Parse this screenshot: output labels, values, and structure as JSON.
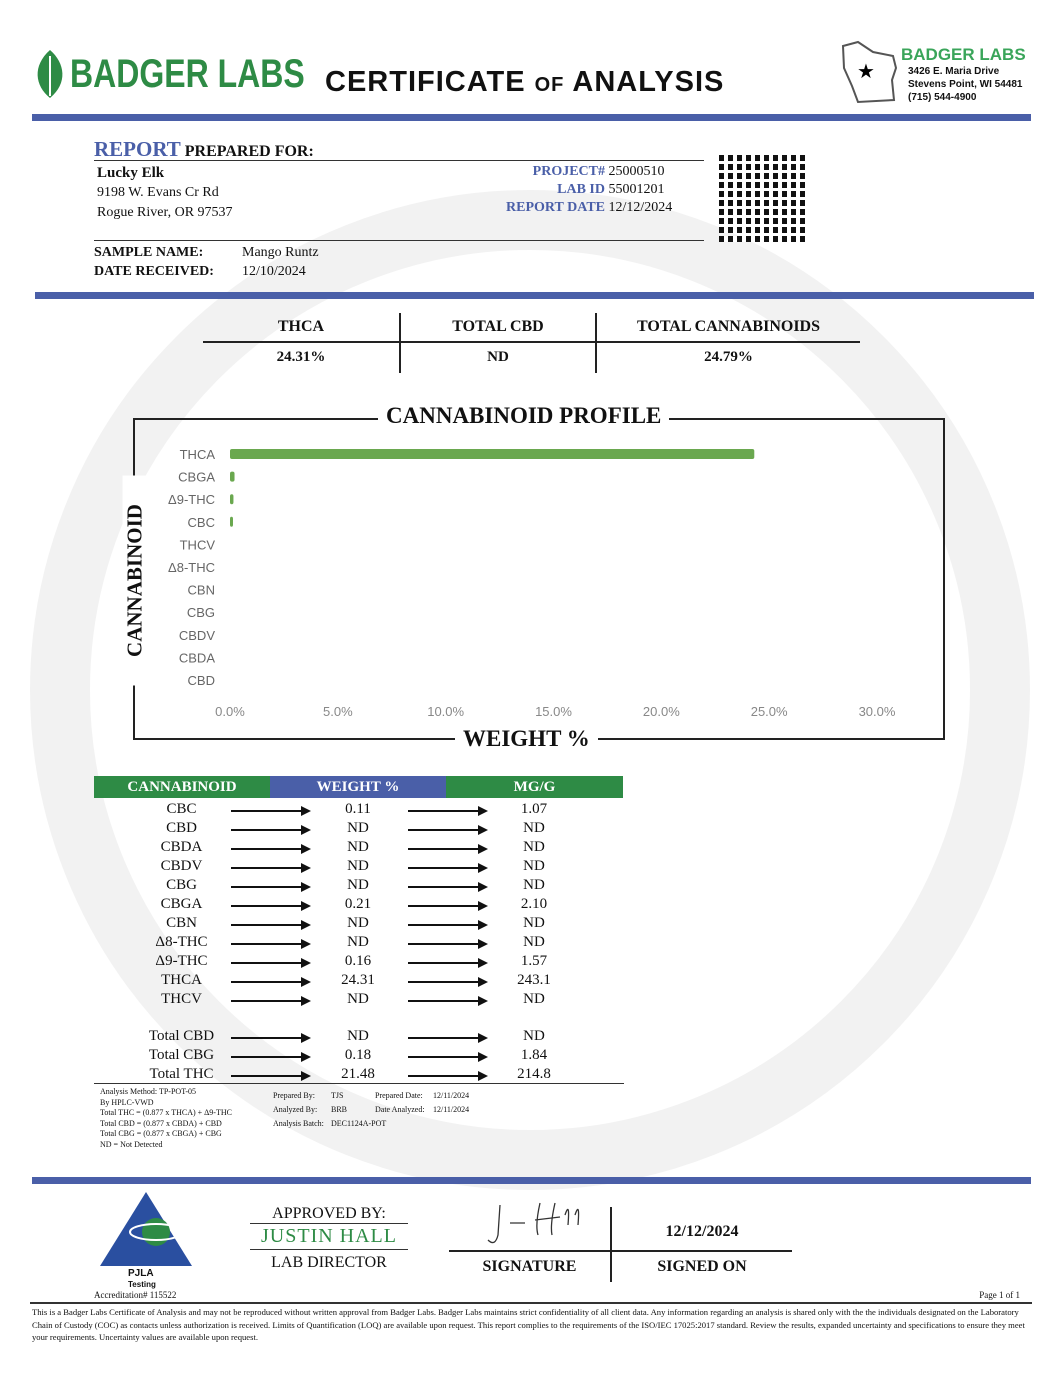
{
  "header": {
    "logo_text": "BADGER LABS",
    "title_main1": "CERTIFICATE",
    "title_of": "OF",
    "title_main2": "ANALYSIS",
    "lab_name": "BADGER LABS",
    "lab_address1": "3426 E. Maria Drive",
    "lab_address2": "Stevens Point, WI 54481",
    "lab_phone": "(715) 544-4900"
  },
  "client": {
    "report_label": "REPORT",
    "prepared_for": "PREPARED FOR:",
    "name": "Lucky Elk",
    "address1": "9198 W. Evans Cr Rd",
    "address2": "Rogue River, OR 97537"
  },
  "report": {
    "project_label": "PROJECT#",
    "project": "25000510",
    "lab_id_label": "LAB ID",
    "lab_id": "55001201",
    "date_label": "REPORT DATE",
    "date": "12/12/2024"
  },
  "sample": {
    "name_label": "SAMPLE NAME:",
    "name": "Mango Runtz",
    "received_label": "DATE RECEIVED:",
    "received": "12/10/2024"
  },
  "summary": [
    {
      "label": "THCA",
      "value": "24.31%"
    },
    {
      "label": "TOTAL CBD",
      "value": "ND"
    },
    {
      "label": "TOTAL CANNABINOIDS",
      "value": "24.79%"
    }
  ],
  "chart_data": {
    "type": "bar",
    "orientation": "horizontal",
    "title": "CANNABINOID PROFILE",
    "xlabel": "WEIGHT %",
    "ylabel": "CANNABINOID",
    "categories": [
      "THCA",
      "CBGA",
      "Δ9-THC",
      "CBC",
      "THCV",
      "Δ8-THC",
      "CBN",
      "CBG",
      "CBDV",
      "CBDA",
      "CBD"
    ],
    "values": [
      24.31,
      0.21,
      0.16,
      0.11,
      0,
      0,
      0,
      0,
      0,
      0,
      0
    ],
    "xlim": [
      0,
      30
    ],
    "xticks": [
      "0.0%",
      "5.0%",
      "10.0%",
      "15.0%",
      "20.0%",
      "25.0%",
      "30.0%"
    ],
    "color": "#6aa84f"
  },
  "table": {
    "headers": [
      "CANNABINOID",
      "WEIGHT %",
      "MG/G"
    ],
    "header_colors": [
      "#2e8b45",
      "#4a5fa8",
      "#2e8b45"
    ],
    "rows": [
      [
        "CBC",
        "0.11",
        "1.07"
      ],
      [
        "CBD",
        "ND",
        "ND"
      ],
      [
        "CBDA",
        "ND",
        "ND"
      ],
      [
        "CBDV",
        "ND",
        "ND"
      ],
      [
        "CBG",
        "ND",
        "ND"
      ],
      [
        "CBGA",
        "0.21",
        "2.10"
      ],
      [
        "CBN",
        "ND",
        "ND"
      ],
      [
        "Δ8-THC",
        "ND",
        "ND"
      ],
      [
        "Δ9-THC",
        "0.16",
        "1.57"
      ],
      [
        "THCA",
        "24.31",
        "243.1"
      ],
      [
        "THCV",
        "ND",
        "ND"
      ]
    ],
    "totals": [
      [
        "Total CBD",
        "ND",
        "ND"
      ],
      [
        "Total CBG",
        "0.18",
        "1.84"
      ],
      [
        "Total THC",
        "21.48",
        "214.8"
      ]
    ]
  },
  "notes": {
    "lines": [
      "Analysis Method: TP-POT-05",
      "By HPLC-VWD",
      "Total THC = (0.877 x  THCA) + Δ9-THC",
      "Total CBD = (0.877 x  CBDA) + CBD",
      "Total CBG = (0.877 x  CBGA) + CBG",
      "ND = Not Detected"
    ],
    "prepared_by_label": "Prepared By:",
    "prepared_by": "TJS",
    "prepared_date_label": "Prepared Date:",
    "prepared_date": "12/11/2024",
    "analyzed_by_label": "Analyzed By:",
    "analyzed_by": "BRB",
    "date_analyzed_label": "Date Analyzed:",
    "date_analyzed": "12/11/2024",
    "batch_label": "Analysis Batch:",
    "batch": "DEC1124A-POT"
  },
  "approval": {
    "pjla": "PJLA",
    "pjla_sub": "Testing",
    "accreditation": "Accreditation# 115522",
    "approved_by": "APPROVED BY:",
    "name": "JUSTIN HALL",
    "role": "LAB DIRECTOR",
    "signature_label": "SIGNATURE",
    "signed_on_label": "SIGNED ON",
    "signed_on": "12/12/2024",
    "page": "Page 1 of 1"
  },
  "disclaimer": "This is a Badger Labs Certificate of Analysis and may not be reproduced without written approval from Badger Labs. Badger Labs maintains strict confidentiality of all client data. Any information regarding an analysis is shared only with the the individuals designated on the Laboratory Chain of Custody (COC) as contacts unless authorization is received. Limits of Quantification (LOQ) are available upon request. This report complies to the requirements of the ISO/IEC 17025:2017 standard. Review the results, expanded uncertainty and specifications to ensure they meet your requirements. Uncertainty values are available upon request."
}
